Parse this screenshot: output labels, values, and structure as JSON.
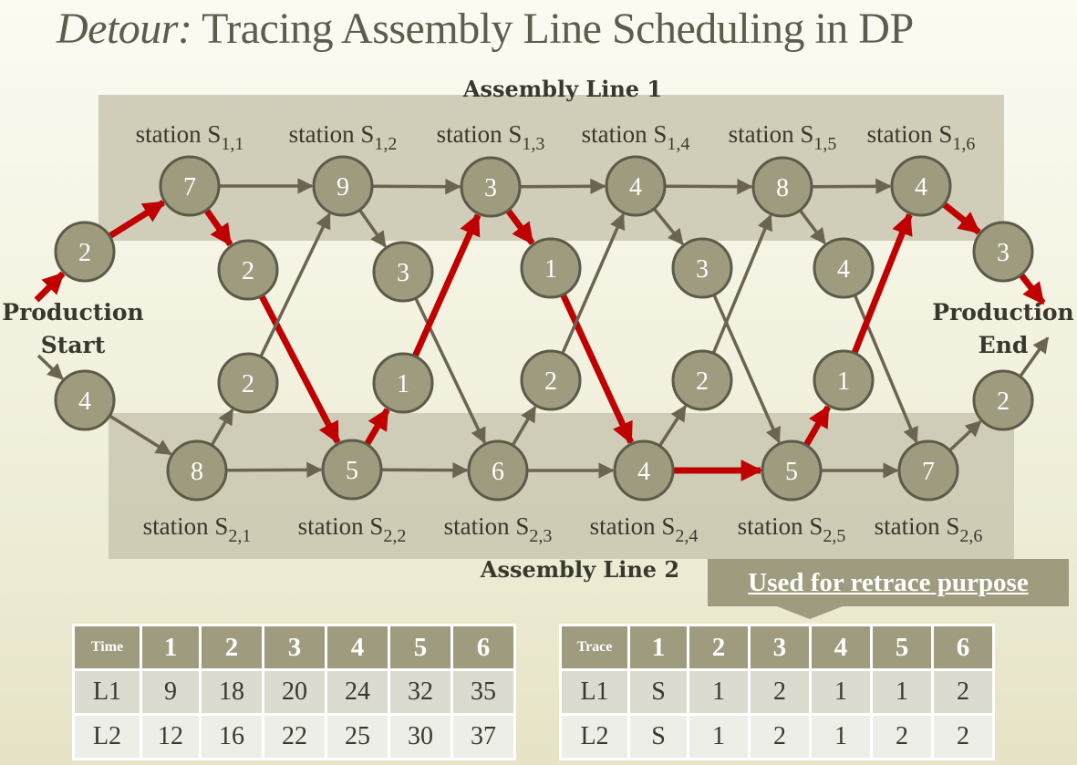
{
  "title": {
    "prefix": "Detour:",
    "rest": "Tracing Assembly Line Scheduling in DP"
  },
  "line1_label": "Assembly Line 1",
  "line2_label": "Assembly Line 2",
  "start_label": [
    "Production",
    "Start"
  ],
  "end_label": [
    "Production",
    "End"
  ],
  "stations_line1": [
    {
      "label": "station S",
      "sub": "1,1",
      "value": "7"
    },
    {
      "label": "station S",
      "sub": "1,2",
      "value": "9"
    },
    {
      "label": "station S",
      "sub": "1,3",
      "value": "3"
    },
    {
      "label": "station S",
      "sub": "1,4",
      "value": "4"
    },
    {
      "label": "station S",
      "sub": "1,5",
      "value": "8"
    },
    {
      "label": "station S",
      "sub": "1,6",
      "value": "4"
    }
  ],
  "stations_line2": [
    {
      "label": "station S",
      "sub": "2,1",
      "value": "8"
    },
    {
      "label": "station S",
      "sub": "2,2",
      "value": "5"
    },
    {
      "label": "station S",
      "sub": "2,3",
      "value": "6"
    },
    {
      "label": "station S",
      "sub": "2,4",
      "value": "4"
    },
    {
      "label": "station S",
      "sub": "2,5",
      "value": "5"
    },
    {
      "label": "station S",
      "sub": "2,6",
      "value": "7"
    }
  ],
  "entry_costs": {
    "line1": "2",
    "line2": "4"
  },
  "exit_costs": {
    "line1": "3",
    "line2": "2"
  },
  "transfer_1_to_2": [
    "2",
    "3",
    "1",
    "3",
    "4"
  ],
  "transfer_2_to_1": [
    "2",
    "1",
    "2",
    "2",
    "1"
  ],
  "highlight_color": "#c00000",
  "node_color": "#9e9b7e",
  "retrace_label": "Used for retrace purpose",
  "time_table": {
    "corner": "Time",
    "columns": [
      "1",
      "2",
      "3",
      "4",
      "5",
      "6"
    ],
    "rows": [
      {
        "label": "L1",
        "values": [
          "9",
          "18",
          "20",
          "24",
          "32",
          "35"
        ]
      },
      {
        "label": "L2",
        "values": [
          "12",
          "16",
          "22",
          "25",
          "30",
          "37"
        ]
      }
    ]
  },
  "trace_table": {
    "corner": "Trace",
    "columns": [
      "1",
      "2",
      "3",
      "4",
      "5",
      "6"
    ],
    "rows": [
      {
        "label": "L1",
        "values": [
          "S",
          "1",
          "2",
          "1",
          "1",
          "2"
        ]
      },
      {
        "label": "L2",
        "values": [
          "S",
          "1",
          "2",
          "1",
          "2",
          "2"
        ]
      }
    ]
  }
}
